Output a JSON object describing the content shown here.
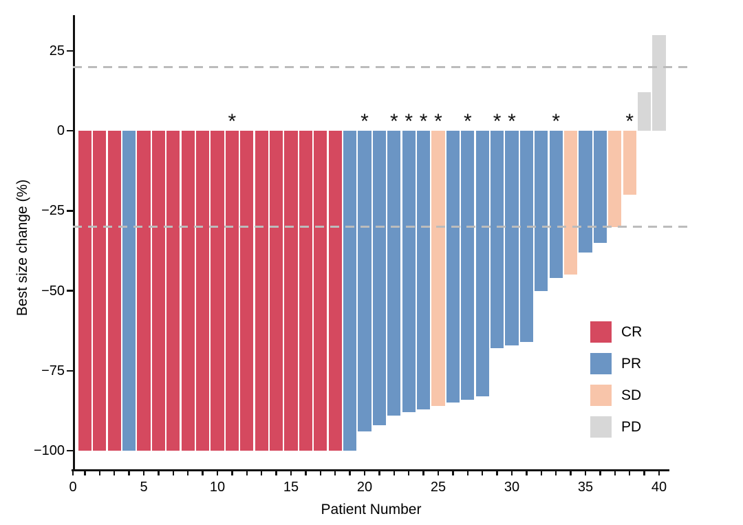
{
  "chart_data": {
    "type": "bar",
    "variant": "waterfall",
    "title": "",
    "xlabel": "Patient Number",
    "ylabel": "Best size change (%)",
    "x_major_ticks": [
      0,
      5,
      10,
      15,
      20,
      25,
      30,
      35,
      40
    ],
    "x_minor_step": 1,
    "xlim": [
      0,
      41
    ],
    "y_ticks": [
      25,
      0,
      -25,
      -50,
      -75,
      -100
    ],
    "ylim": [
      -106,
      36
    ],
    "grid": false,
    "annotation_symbol": "*",
    "reference_lines": {
      "style": "dashed",
      "color": "#bcbcbc",
      "values": [
        20,
        -30
      ]
    },
    "legend": {
      "position": "inside-right",
      "entries": [
        {
          "label": "CR",
          "color": "#d5495f"
        },
        {
          "label": "PR",
          "color": "#6b95c4"
        },
        {
          "label": "SD",
          "color": "#f8c5aa"
        },
        {
          "label": "PD",
          "color": "#d7d7d7"
        }
      ]
    },
    "axis_color": "#111111",
    "patients": [
      {
        "n": 1,
        "value": -100,
        "response": "CR",
        "star": false
      },
      {
        "n": 2,
        "value": -100,
        "response": "CR",
        "star": false
      },
      {
        "n": 3,
        "value": -100,
        "response": "CR",
        "star": false
      },
      {
        "n": 4,
        "value": -100,
        "response": "PR",
        "star": false
      },
      {
        "n": 5,
        "value": -100,
        "response": "CR",
        "star": false
      },
      {
        "n": 6,
        "value": -100,
        "response": "CR",
        "star": false
      },
      {
        "n": 7,
        "value": -100,
        "response": "CR",
        "star": false
      },
      {
        "n": 8,
        "value": -100,
        "response": "CR",
        "star": false
      },
      {
        "n": 9,
        "value": -100,
        "response": "CR",
        "star": false
      },
      {
        "n": 10,
        "value": -100,
        "response": "CR",
        "star": false
      },
      {
        "n": 11,
        "value": -100,
        "response": "CR",
        "star": true
      },
      {
        "n": 12,
        "value": -100,
        "response": "CR",
        "star": false
      },
      {
        "n": 13,
        "value": -100,
        "response": "CR",
        "star": false
      },
      {
        "n": 14,
        "value": -100,
        "response": "CR",
        "star": false
      },
      {
        "n": 15,
        "value": -100,
        "response": "CR",
        "star": false
      },
      {
        "n": 16,
        "value": -100,
        "response": "CR",
        "star": false
      },
      {
        "n": 17,
        "value": -100,
        "response": "CR",
        "star": false
      },
      {
        "n": 18,
        "value": -100,
        "response": "CR",
        "star": false
      },
      {
        "n": 19,
        "value": -100,
        "response": "PR",
        "star": false
      },
      {
        "n": 20,
        "value": -94,
        "response": "PR",
        "star": true
      },
      {
        "n": 21,
        "value": -92,
        "response": "PR",
        "star": false
      },
      {
        "n": 22,
        "value": -89,
        "response": "PR",
        "star": true
      },
      {
        "n": 23,
        "value": -88,
        "response": "PR",
        "star": true
      },
      {
        "n": 24,
        "value": -87,
        "response": "PR",
        "star": true
      },
      {
        "n": 25,
        "value": -86,
        "response": "SD",
        "star": true
      },
      {
        "n": 26,
        "value": -85,
        "response": "PR",
        "star": false
      },
      {
        "n": 27,
        "value": -84,
        "response": "PR",
        "star": true
      },
      {
        "n": 28,
        "value": -83,
        "response": "PR",
        "star": false
      },
      {
        "n": 29,
        "value": -68,
        "response": "PR",
        "star": true
      },
      {
        "n": 30,
        "value": -67,
        "response": "PR",
        "star": true
      },
      {
        "n": 31,
        "value": -66,
        "response": "PR",
        "star": false
      },
      {
        "n": 32,
        "value": -50,
        "response": "PR",
        "star": false
      },
      {
        "n": 33,
        "value": -46,
        "response": "PR",
        "star": true
      },
      {
        "n": 34,
        "value": -45,
        "response": "SD",
        "star": false
      },
      {
        "n": 35,
        "value": -38,
        "response": "PR",
        "star": false
      },
      {
        "n": 36,
        "value": -35,
        "response": "PR",
        "star": false
      },
      {
        "n": 37,
        "value": -30,
        "response": "SD",
        "star": false
      },
      {
        "n": 38,
        "value": -20,
        "response": "SD",
        "star": true
      },
      {
        "n": 39,
        "value": 12,
        "response": "PD",
        "star": false
      },
      {
        "n": 40,
        "value": 30,
        "response": "PD",
        "star": false
      }
    ]
  }
}
